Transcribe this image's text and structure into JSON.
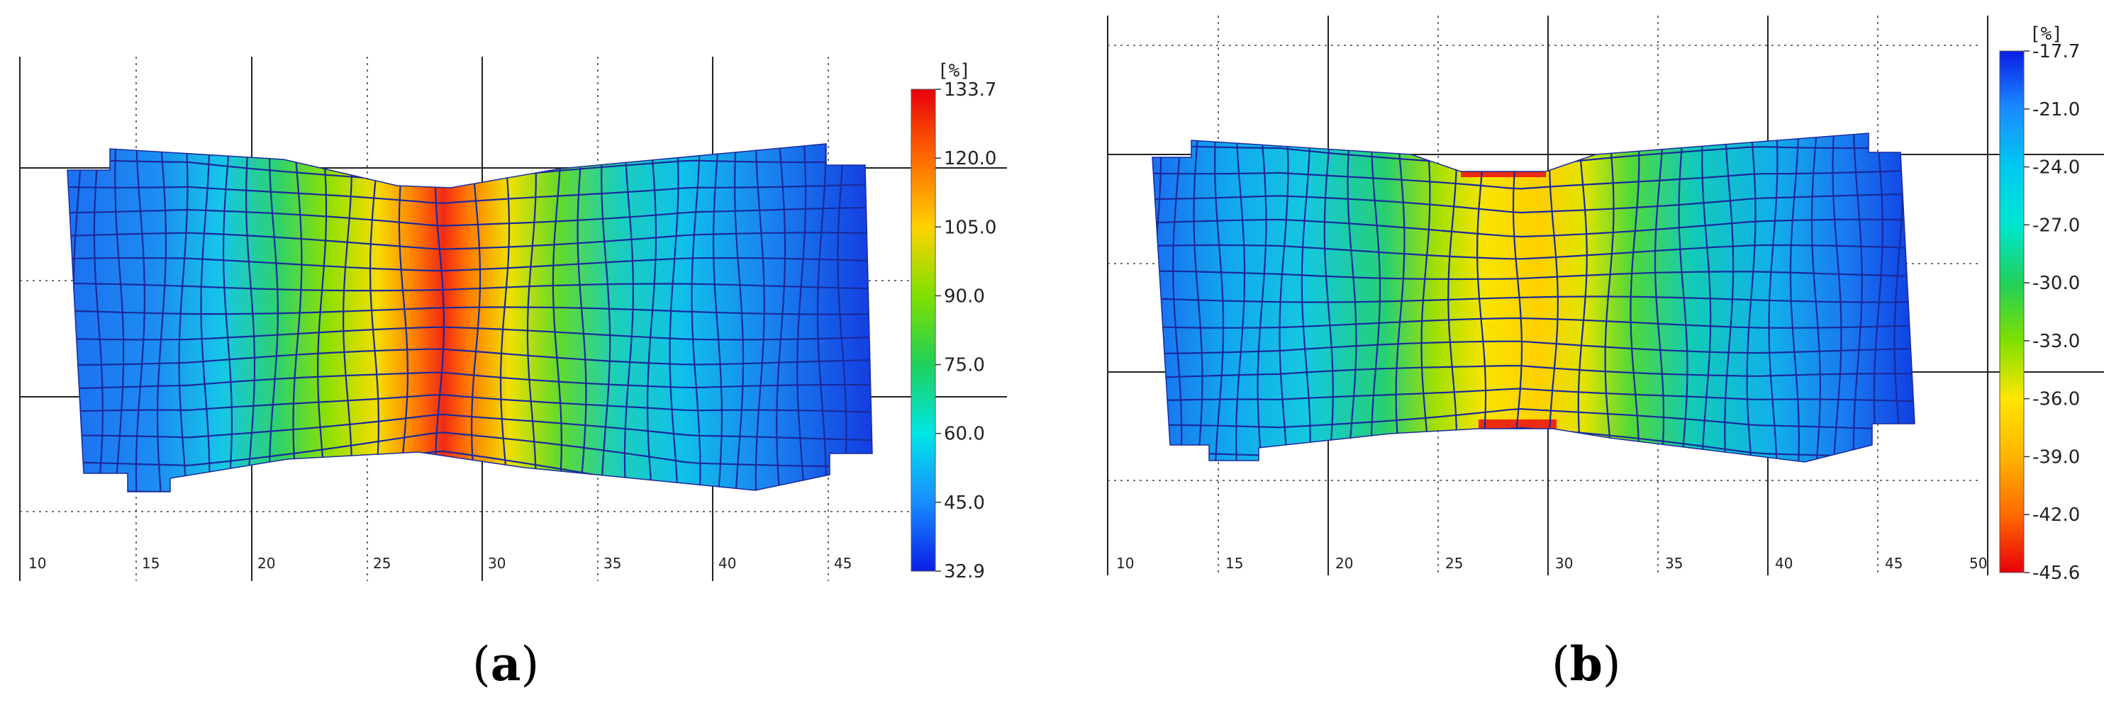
{
  "panels": [
    {
      "id": "a",
      "label_open": "(",
      "label_letter": "a",
      "label_close": ")",
      "unit": "[%]",
      "x_ticks": [
        "10",
        "15",
        "20",
        "25",
        "30",
        "35",
        "40",
        "45"
      ],
      "colorbar_ticks": [
        "133.7",
        "120.0",
        "105.0",
        "90.0",
        "75.0",
        "60.0",
        "45.0",
        "32.9"
      ],
      "colorbar_colors": [
        "#e8000a",
        "#ff6a00",
        "#ffd200",
        "#7fe000",
        "#1fd05a",
        "#00e6e6",
        "#1a8cff",
        "#0a1ee6"
      ]
    },
    {
      "id": "b",
      "label_open": "(",
      "label_letter": "b",
      "label_close": ")",
      "unit": "[%]",
      "x_ticks": [
        "10",
        "15",
        "20",
        "25",
        "30",
        "35",
        "40",
        "45",
        "50"
      ],
      "colorbar_ticks": [
        "-17.7",
        "-21.0",
        "-24.0",
        "-27.0",
        "-30.0",
        "-33.0",
        "-36.0",
        "-39.0",
        "-42.0",
        "-45.6"
      ],
      "colorbar_colors": [
        "#0a1ee6",
        "#1a8cff",
        "#00c8f0",
        "#00e6d2",
        "#1fd05a",
        "#7fe000",
        "#ffe600",
        "#ffb400",
        "#ff6a00",
        "#e8000a"
      ]
    }
  ]
}
